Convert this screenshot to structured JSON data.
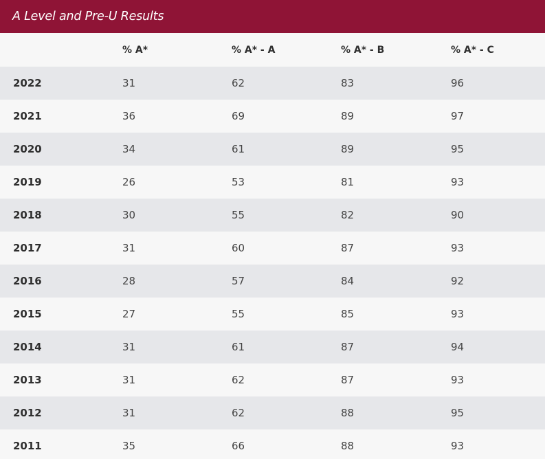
{
  "title": "A Level and Pre-U Results",
  "colors": {
    "header_bg": "#8f1436",
    "row_odd": "#e6e7ea",
    "row_even": "#f7f7f7"
  },
  "table": {
    "headers": [
      "",
      "% A*",
      "% A* - A",
      "% A* - B",
      "% A* - C"
    ],
    "rows": [
      {
        "year": "2022",
        "values": [
          "31",
          "62",
          "83",
          "96"
        ]
      },
      {
        "year": "2021",
        "values": [
          "36",
          "69",
          "89",
          "97"
        ]
      },
      {
        "year": "2020",
        "values": [
          "34",
          "61",
          "89",
          "95"
        ]
      },
      {
        "year": "2019",
        "values": [
          "26",
          "53",
          "81",
          "93"
        ]
      },
      {
        "year": "2018",
        "values": [
          "30",
          "55",
          "82",
          "90"
        ]
      },
      {
        "year": "2017",
        "values": [
          "31",
          "60",
          "87",
          "93"
        ]
      },
      {
        "year": "2016",
        "values": [
          "28",
          "57",
          "84",
          "92"
        ]
      },
      {
        "year": "2015",
        "values": [
          "27",
          "55",
          "85",
          "93"
        ]
      },
      {
        "year": "2014",
        "values": [
          "31",
          "61",
          "87",
          "94"
        ]
      },
      {
        "year": "2013",
        "values": [
          "31",
          "62",
          "87",
          "93"
        ]
      },
      {
        "year": "2012",
        "values": [
          "31",
          "62",
          "88",
          "95"
        ]
      },
      {
        "year": "2011",
        "values": [
          "35",
          "66",
          "88",
          "93"
        ]
      }
    ]
  }
}
